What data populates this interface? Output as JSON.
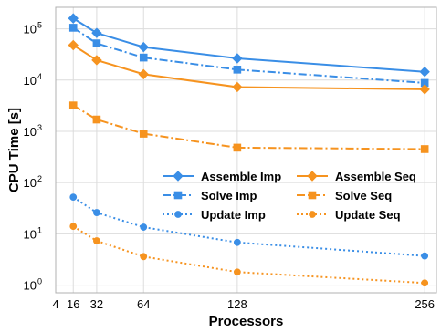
{
  "chart_data": {
    "type": "line",
    "title": "",
    "xlabel": "Processors",
    "ylabel": "CPU Time [s]",
    "xlim": [
      4,
      264
    ],
    "ylim_log10": [
      -0.15,
      5.42
    ],
    "yscale": "log",
    "grid": true,
    "legend_position": "center-right",
    "x_ticks": [
      4,
      16,
      32,
      64,
      128,
      256
    ],
    "x_tick_labels": [
      "4",
      "16",
      "32",
      "64",
      "128",
      "256"
    ],
    "y_ticks": [
      1,
      10,
      100,
      1000,
      10000,
      100000
    ],
    "y_tick_labels": [
      {
        "base": "10",
        "exp": "0"
      },
      {
        "base": "10",
        "exp": "1"
      },
      {
        "base": "10",
        "exp": "2"
      },
      {
        "base": "10",
        "exp": "3"
      },
      {
        "base": "10",
        "exp": "4"
      },
      {
        "base": "10",
        "exp": "5"
      }
    ],
    "x": [
      16,
      32,
      64,
      128,
      256
    ],
    "series": [
      {
        "name": "Assemble Imp",
        "values": [
          160000,
          83000,
          44000,
          26500,
          14500
        ],
        "color": "#3a8ee6",
        "dash": "solid",
        "marker": "diamond"
      },
      {
        "name": "Solve Imp",
        "values": [
          105000,
          52000,
          27500,
          16000,
          8800
        ],
        "color": "#3a8ee6",
        "dash": "dashdot",
        "marker": "square"
      },
      {
        "name": "Update Imp",
        "values": [
          52,
          26,
          13.5,
          6.8,
          3.7
        ],
        "color": "#3a8ee6",
        "dash": "dotted",
        "marker": "circle"
      },
      {
        "name": "Assemble Seq",
        "values": [
          48000,
          24500,
          13000,
          7300,
          6600
        ],
        "color": "#f6931f",
        "dash": "solid",
        "marker": "diamond"
      },
      {
        "name": "Solve Seq",
        "values": [
          3200,
          1700,
          900,
          480,
          450
        ],
        "color": "#f6931f",
        "dash": "dashdot",
        "marker": "square"
      },
      {
        "name": "Update Seq",
        "values": [
          14,
          7.3,
          3.6,
          1.8,
          1.1
        ],
        "color": "#f6931f",
        "dash": "dotted",
        "marker": "circle"
      }
    ],
    "legend_columns": [
      [
        "Assemble Imp",
        "Solve Imp",
        "Update Imp"
      ],
      [
        "Assemble Seq",
        "Solve Seq",
        "Update Seq"
      ]
    ]
  }
}
